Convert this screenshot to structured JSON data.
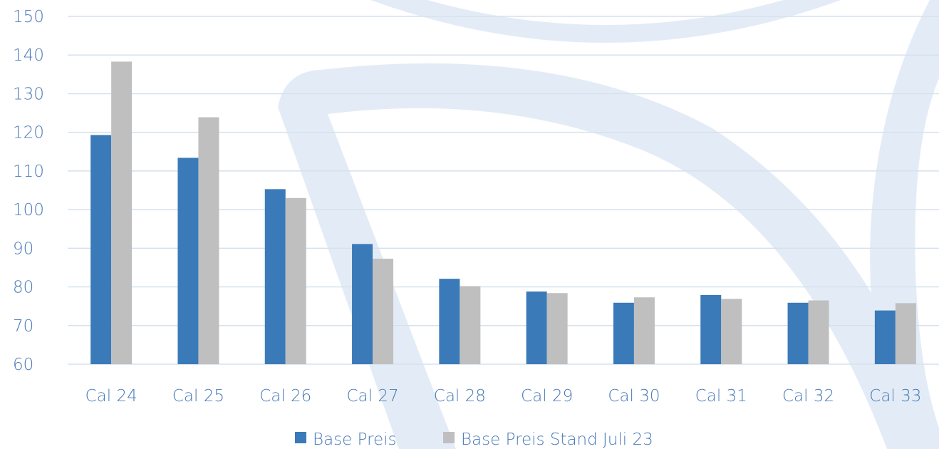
{
  "colors": {
    "series_primary": "#3a7ab8",
    "series_secondary": "#bfbfbf",
    "gridline": "#d6e1ee",
    "text": "#4a7ab8",
    "watermark": "#e3ecf6"
  },
  "chart_data": {
    "type": "bar",
    "categories": [
      "Cal 24",
      "Cal 25",
      "Cal 26",
      "Cal 27",
      "Cal 28",
      "Cal 29",
      "Cal 30",
      "Cal 31",
      "Cal 32",
      "Cal 33"
    ],
    "series": [
      {
        "name": "Base Preis",
        "color": "#3a7ab8",
        "values": [
          119.3,
          113.4,
          105.3,
          91.1,
          82.1,
          78.8,
          75.9,
          77.9,
          75.9,
          73.9
        ]
      },
      {
        "name": "Base Preis Stand Juli 23",
        "color": "#bfbfbf",
        "values": [
          138.3,
          123.9,
          103.0,
          87.3,
          80.2,
          78.4,
          77.3,
          76.9,
          76.5,
          75.8
        ]
      }
    ],
    "ylim": [
      60,
      150
    ],
    "yticks": [
      60,
      70,
      80,
      90,
      100,
      110,
      120,
      130,
      140,
      150
    ],
    "ytick_labels": [
      "60",
      "70",
      "80",
      "90",
      "100",
      "110",
      "120",
      "130",
      "140",
      "150"
    ],
    "grid": true,
    "legend": "bottom-center",
    "title": "",
    "xlabel": "",
    "ylabel": ""
  }
}
